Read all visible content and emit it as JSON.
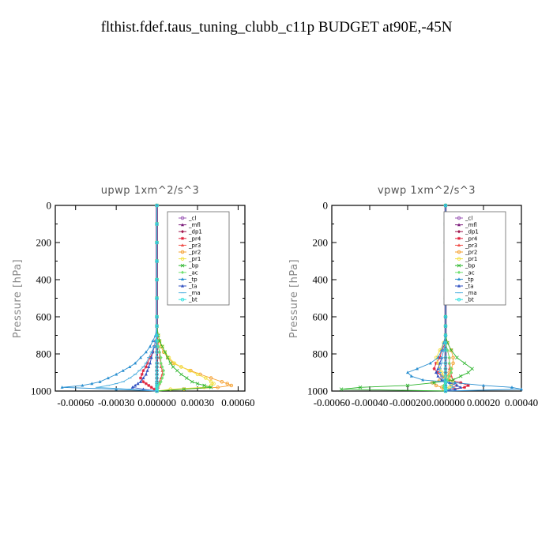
{
  "title": "flthist.fdef.taus_tuning_clubb_c11p  BUDGET at90E,-45N",
  "legend_labels": [
    "_cl",
    "_mfl",
    "_dp1",
    "_pr4",
    "_pr3",
    "_pr2",
    "_pr1",
    "_bp",
    "_ac",
    "_tp",
    "_ta",
    "_ma",
    "_bt"
  ],
  "colors": {
    "_cl": "#9b59b6",
    "_mfl": "#7a1a7a",
    "_dp1": "#a0184f",
    "_pr4": "#e0203a",
    "_pr3": "#f0504a",
    "_pr2": "#f5a030",
    "_pr1": "#f2e040",
    "_bp": "#2db52d",
    "_ac": "#70e070",
    "_tp": "#2a8fd0",
    "_ta": "#3050c0",
    "_ma": "#50b0e0",
    "_bt": "#30e0e0"
  },
  "chart_data": [
    {
      "type": "line",
      "title": "upwp   1xm^2/s^3",
      "ylabel": "Pressure [hPa]",
      "xlim": [
        -0.00075,
        0.00065
      ],
      "ylim": [
        1000,
        0
      ],
      "yticks": [
        0,
        200,
        400,
        600,
        800,
        1000
      ],
      "xticks": [
        -0.0006,
        -0.0003,
        0.0,
        0.0003,
        0.0006
      ],
      "xtick_labels": [
        "-0.00060",
        "-0.00030",
        "0.000000",
        "0.00030",
        "0.00060"
      ],
      "legend_position": "top-right",
      "y": [
        0,
        100,
        200,
        300,
        400,
        500,
        600,
        650,
        700,
        730,
        760,
        790,
        820,
        850,
        870,
        890,
        910,
        930,
        950,
        960,
        970,
        980,
        990,
        1000
      ],
      "series": [
        {
          "name": "_cl",
          "values": [
            0,
            0,
            0,
            0,
            0,
            0,
            0,
            0,
            0,
            0,
            0,
            0,
            0,
            0,
            0,
            0,
            0,
            0,
            0,
            0,
            0,
            0,
            0,
            0
          ]
        },
        {
          "name": "_mfl",
          "values": [
            0,
            0,
            0,
            0,
            0,
            0,
            0,
            0,
            0,
            0,
            0,
            0,
            0,
            0,
            0,
            0,
            0,
            0,
            0,
            0,
            0,
            0,
            0,
            0
          ]
        },
        {
          "name": "_dp1",
          "values": [
            0,
            0,
            0,
            0,
            0,
            0,
            0,
            0,
            0,
            0,
            0,
            5e-06,
            5e-06,
            5e-06,
            0,
            0,
            0,
            0,
            0,
            0,
            0,
            0,
            0,
            0
          ]
        },
        {
          "name": "_pr4",
          "values": [
            0,
            0,
            0,
            0,
            0,
            0,
            0,
            0,
            0,
            -1e-05,
            -2e-05,
            -3e-05,
            -5e-05,
            -7e-05,
            -8e-05,
            -0.0001,
            -0.00011,
            -0.00012,
            -0.0001,
            -8e-05,
            -6e-05,
            -4e-05,
            -2e-05,
            0
          ]
        },
        {
          "name": "_pr3",
          "values": [
            0,
            0,
            0,
            0,
            0,
            0,
            0,
            0,
            0,
            1e-05,
            1e-05,
            2e-05,
            2e-05,
            3e-05,
            3e-05,
            4e-05,
            4e-05,
            3e-05,
            2e-05,
            2e-05,
            1e-05,
            1e-05,
            0,
            0
          ]
        },
        {
          "name": "_pr2",
          "values": [
            0,
            0,
            0,
            0,
            0,
            0,
            0,
            0,
            1e-05,
            2e-05,
            3e-05,
            5e-05,
            8e-05,
            0.00012,
            0.00018,
            0.00025,
            0.00032,
            0.0004,
            0.00048,
            0.00052,
            0.00055,
            0.00045,
            0.0002,
            0
          ]
        },
        {
          "name": "_pr1",
          "values": [
            0,
            0,
            0,
            0,
            0,
            0,
            0,
            0,
            1e-05,
            2e-05,
            4e-05,
            6e-05,
            9e-05,
            0.00013,
            0.00018,
            0.00024,
            0.0003,
            0.00036,
            0.0004,
            0.00042,
            0.0004,
            0.00035,
            0.0001,
            0
          ]
        },
        {
          "name": "_bp",
          "values": [
            0,
            0,
            0,
            0,
            0,
            0,
            0,
            0,
            1e-05,
            2e-05,
            4e-05,
            6e-05,
            8e-05,
            0.0001,
            0.00012,
            0.00015,
            0.00018,
            0.00022,
            0.00026,
            0.0003,
            0.00035,
            0.0004,
            0.0002,
            0
          ]
        },
        {
          "name": "_ac",
          "values": [
            0,
            0,
            0,
            0,
            0,
            0,
            0,
            0,
            0,
            0,
            1e-05,
            2e-05,
            3e-05,
            3e-05,
            4e-05,
            5e-05,
            5e-05,
            4e-05,
            3e-05,
            2e-05,
            1e-05,
            0,
            0,
            0
          ]
        },
        {
          "name": "_tp",
          "values": [
            0,
            0,
            0,
            0,
            0,
            0,
            0,
            0,
            -1e-05,
            -3e-05,
            -5e-05,
            -8e-05,
            -0.00012,
            -0.00016,
            -0.0002,
            -0.00025,
            -0.0003,
            -0.00036,
            -0.00042,
            -0.00048,
            -0.00055,
            -0.0007,
            -0.0003,
            0
          ]
        },
        {
          "name": "_ta",
          "values": [
            0,
            0,
            0,
            0,
            0,
            0,
            0,
            0,
            0,
            -1e-05,
            -2e-05,
            -3e-05,
            -4e-05,
            -5e-05,
            -6e-05,
            -7e-05,
            -8e-05,
            -0.0001,
            -0.00012,
            -0.00014,
            -0.00016,
            -0.00018,
            -0.0001,
            0
          ]
        },
        {
          "name": "_ma",
          "values": [
            0,
            0,
            0,
            0,
            0,
            0,
            0,
            0,
            0,
            -1e-05,
            -2e-05,
            -4e-05,
            -6e-05,
            -8e-05,
            -0.0001,
            -0.00013,
            -0.00016,
            -0.0002,
            -0.00025,
            -0.0003,
            -0.00036,
            -0.00044,
            -0.0002,
            0
          ]
        },
        {
          "name": "_bt",
          "values": [
            0,
            0,
            0,
            0,
            0,
            0,
            0,
            0,
            0,
            0,
            0,
            0,
            0,
            0,
            0,
            0,
            0,
            0,
            0,
            0,
            0,
            0,
            0,
            0
          ]
        }
      ]
    },
    {
      "type": "line",
      "title": "vpwp   1xm^2/s^3",
      "ylabel": "Pressure [hPa]",
      "xlim": [
        -0.0006,
        0.0004
      ],
      "ylim": [
        1000,
        0
      ],
      "yticks": [
        0,
        200,
        400,
        600,
        800,
        1000
      ],
      "xticks": [
        -0.0006,
        -0.0004,
        -0.0002,
        0.0,
        0.0002,
        0.0004
      ],
      "xtick_labels": [
        "-0.00060",
        "-0.00040",
        "-0.00020",
        "0.000000",
        "0.00020",
        "0.00040"
      ],
      "legend_position": "top-right",
      "y": [
        0,
        100,
        200,
        300,
        400,
        500,
        600,
        650,
        700,
        740,
        780,
        820,
        850,
        880,
        900,
        920,
        940,
        955,
        970,
        980,
        990,
        1000
      ],
      "series": [
        {
          "name": "_cl",
          "values": [
            0,
            0,
            0,
            0,
            0,
            0,
            0,
            0,
            0,
            0,
            0,
            0,
            0,
            0,
            0,
            0,
            0,
            0,
            0,
            0,
            0,
            0
          ]
        },
        {
          "name": "_mfl",
          "values": [
            0,
            0,
            0,
            0,
            0,
            0,
            0,
            0,
            0,
            0,
            0,
            0,
            0,
            0,
            0,
            0,
            0,
            0,
            0,
            0,
            0,
            0
          ]
        },
        {
          "name": "_dp1",
          "values": [
            0,
            0,
            0,
            0,
            0,
            0,
            0,
            0,
            0,
            0,
            0,
            0,
            0,
            0,
            0,
            0,
            0,
            0,
            0,
            0,
            0,
            0
          ]
        },
        {
          "name": "_pr4",
          "values": [
            0,
            0,
            0,
            0,
            0,
            0,
            0,
            0,
            0,
            0,
            -2e-05,
            -3e-05,
            -5e-05,
            -6e-05,
            -4e-05,
            -2e-05,
            2e-05,
            8e-05,
            0.00012,
            0.0001,
            5e-05,
            0
          ]
        },
        {
          "name": "_pr3",
          "values": [
            0,
            0,
            0,
            0,
            0,
            0,
            0,
            0,
            0,
            0,
            1e-05,
            2e-05,
            2e-05,
            2e-05,
            3e-05,
            3e-05,
            4e-05,
            5e-05,
            6e-05,
            4e-05,
            2e-05,
            0
          ]
        },
        {
          "name": "_pr2",
          "values": [
            0,
            0,
            0,
            0,
            0,
            0,
            0,
            0,
            0,
            1e-05,
            3e-05,
            4e-05,
            4e-05,
            3e-05,
            2e-05,
            1e-05,
            -3e-05,
            -7e-05,
            -5e-05,
            -2e-05,
            -1e-05,
            0
          ]
        },
        {
          "name": "_pr1",
          "values": [
            0,
            0,
            0,
            0,
            0,
            0,
            0,
            0,
            0,
            -1e-05,
            -3e-05,
            -5e-05,
            -4e-05,
            -3e-05,
            -2e-05,
            -1e-05,
            2e-05,
            4e-05,
            3e-05,
            2e-05,
            1e-05,
            0
          ]
        },
        {
          "name": "_bp",
          "values": [
            0,
            0,
            0,
            0,
            0,
            0,
            0,
            0,
            0,
            1e-05,
            3e-05,
            6e-05,
            0.0001,
            0.00014,
            0.00012,
            8e-05,
            4e-05,
            -6e-05,
            -0.0002,
            -0.00045,
            -0.00055,
            0
          ]
        },
        {
          "name": "_ac",
          "values": [
            0,
            0,
            0,
            0,
            0,
            0,
            0,
            0,
            0,
            0,
            1e-05,
            2e-05,
            2e-05,
            3e-05,
            3e-05,
            2e-05,
            1e-05,
            0,
            -1e-05,
            -1e-05,
            0,
            0
          ]
        },
        {
          "name": "_tp",
          "values": [
            0,
            0,
            0,
            0,
            0,
            0,
            0,
            0,
            0,
            -1e-05,
            -2e-05,
            -4e-05,
            -8e-05,
            -0.00015,
            -0.0002,
            -0.00018,
            -0.00012,
            5e-05,
            0.0002,
            0.00035,
            0.0004,
            0
          ]
        },
        {
          "name": "_ta",
          "values": [
            0,
            0,
            0,
            0,
            0,
            0,
            0,
            0,
            0,
            0,
            -1e-05,
            -2e-05,
            -3e-05,
            -4e-05,
            -5e-05,
            -4e-05,
            -2e-05,
            2e-05,
            6e-05,
            8e-05,
            5e-05,
            0
          ]
        },
        {
          "name": "_ma",
          "values": [
            0,
            0,
            0,
            0,
            0,
            0,
            0,
            0,
            0,
            0,
            -1e-05,
            -2e-05,
            -2e-05,
            -3e-05,
            -3e-05,
            -2e-05,
            -1e-05,
            1e-05,
            3e-05,
            4e-05,
            2e-05,
            0
          ]
        },
        {
          "name": "_bt",
          "values": [
            0,
            0,
            0,
            0,
            0,
            0,
            0,
            0,
            0,
            0,
            0,
            0,
            0,
            0,
            0,
            0,
            0,
            0,
            0,
            0,
            0,
            0
          ]
        }
      ]
    }
  ]
}
